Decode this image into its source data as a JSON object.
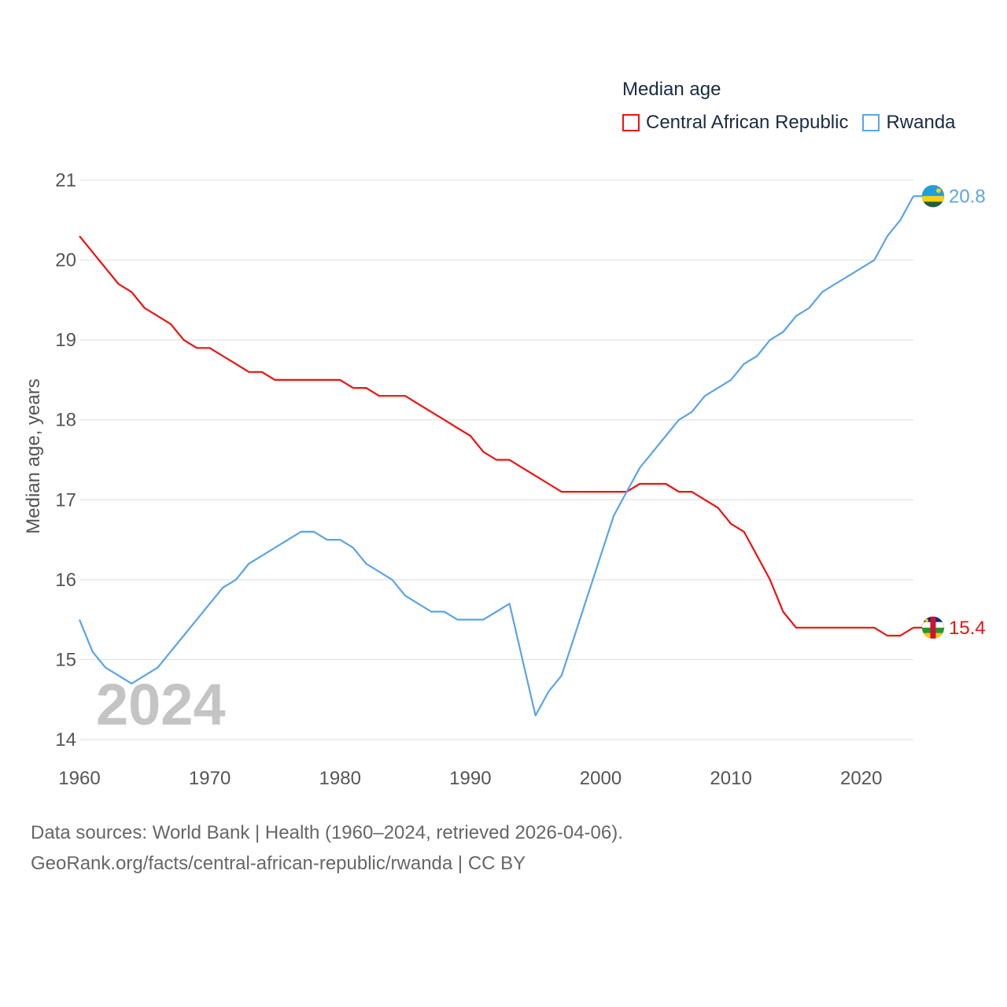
{
  "chart_data": {
    "type": "line",
    "title": "Median age",
    "ylabel": "Median age, years",
    "xlabel": "",
    "xlim": [
      1960,
      2024
    ],
    "ylim": [
      14,
      21
    ],
    "x_ticks": [
      1960,
      1970,
      1980,
      1990,
      2000,
      2010,
      2020
    ],
    "y_ticks": [
      14,
      15,
      16,
      17,
      18,
      19,
      20,
      21
    ],
    "x_tick_labels": [
      "1960",
      "1970",
      "1980",
      "1990",
      "2000",
      "2010",
      "2020"
    ],
    "y_tick_labels": [
      "14",
      "15",
      "16",
      "17",
      "18",
      "19",
      "20",
      "21"
    ],
    "grid": true,
    "legend_position": "top-right",
    "year_label": "2024",
    "series": [
      {
        "name": "Central African Republic",
        "color": "#ee1111",
        "end_label": "15.4",
        "flag_icon": "central-african-republic-flag-icon",
        "x": [
          1960,
          1961,
          1962,
          1963,
          1964,
          1965,
          1966,
          1967,
          1968,
          1969,
          1970,
          1971,
          1972,
          1973,
          1974,
          1975,
          1976,
          1977,
          1978,
          1979,
          1980,
          1981,
          1982,
          1983,
          1984,
          1985,
          1986,
          1987,
          1988,
          1989,
          1990,
          1991,
          1992,
          1993,
          1994,
          1995,
          1996,
          1997,
          1998,
          1999,
          2000,
          2001,
          2002,
          2003,
          2004,
          2005,
          2006,
          2007,
          2008,
          2009,
          2010,
          2011,
          2012,
          2013,
          2014,
          2015,
          2016,
          2017,
          2018,
          2019,
          2020,
          2021,
          2022,
          2023,
          2024
        ],
        "values": [
          20.3,
          20.1,
          19.9,
          19.7,
          19.6,
          19.4,
          19.3,
          19.2,
          19.0,
          18.9,
          18.9,
          18.8,
          18.7,
          18.6,
          18.6,
          18.5,
          18.5,
          18.5,
          18.5,
          18.5,
          18.5,
          18.4,
          18.4,
          18.3,
          18.3,
          18.3,
          18.2,
          18.1,
          18.0,
          17.9,
          17.8,
          17.6,
          17.5,
          17.5,
          17.4,
          17.3,
          17.2,
          17.1,
          17.1,
          17.1,
          17.1,
          17.1,
          17.1,
          17.2,
          17.2,
          17.2,
          17.1,
          17.1,
          17.0,
          16.9,
          16.7,
          16.6,
          16.3,
          16.0,
          15.6,
          15.4,
          15.4,
          15.4,
          15.4,
          15.4,
          15.4,
          15.4,
          15.3,
          15.3,
          15.4
        ]
      },
      {
        "name": "Rwanda",
        "color": "#5ba4e8",
        "end_label": "20.8",
        "flag_icon": "rwanda-flag-icon",
        "x": [
          1960,
          1961,
          1962,
          1963,
          1964,
          1965,
          1966,
          1967,
          1968,
          1969,
          1970,
          1971,
          1972,
          1973,
          1974,
          1975,
          1976,
          1977,
          1978,
          1979,
          1980,
          1981,
          1982,
          1983,
          1984,
          1985,
          1986,
          1987,
          1988,
          1989,
          1990,
          1991,
          1992,
          1993,
          1994,
          1995,
          1996,
          1997,
          1998,
          1999,
          2000,
          2001,
          2002,
          2003,
          2004,
          2005,
          2006,
          2007,
          2008,
          2009,
          2010,
          2011,
          2012,
          2013,
          2014,
          2015,
          2016,
          2017,
          2018,
          2019,
          2020,
          2021,
          2022,
          2023,
          2024
        ],
        "values": [
          15.5,
          15.1,
          14.9,
          14.8,
          14.7,
          14.8,
          14.9,
          15.1,
          15.3,
          15.5,
          15.7,
          15.9,
          16.0,
          16.2,
          16.3,
          16.4,
          16.5,
          16.6,
          16.6,
          16.5,
          16.5,
          16.4,
          16.2,
          16.1,
          16.0,
          15.8,
          15.7,
          15.6,
          15.6,
          15.5,
          15.5,
          15.5,
          15.6,
          15.7,
          15.0,
          14.3,
          14.6,
          14.8,
          15.3,
          15.8,
          16.3,
          16.8,
          17.1,
          17.4,
          17.6,
          17.8,
          18.0,
          18.1,
          18.3,
          18.4,
          18.5,
          18.7,
          18.8,
          19.0,
          19.1,
          19.3,
          19.4,
          19.6,
          19.7,
          19.8,
          19.9,
          20.0,
          20.3,
          20.5,
          20.8
        ]
      }
    ]
  },
  "footer": {
    "line1": "Data sources: World Bank | Health (1960–2024, retrieved 2026-04-06).",
    "line2": "GeoRank.org/facts/central-african-republic/rwanda | CC BY"
  }
}
